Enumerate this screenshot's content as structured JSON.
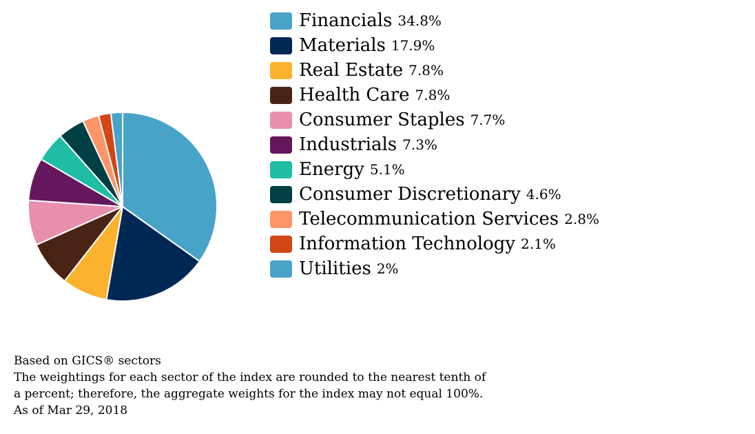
{
  "chart_data": {
    "type": "pie",
    "title": "",
    "slices": [
      {
        "label": "Financials",
        "value": 34.8,
        "display": "34.8%",
        "color": "#48a3c9"
      },
      {
        "label": "Materials",
        "value": 17.9,
        "display": "17.9%",
        "color": "#002855"
      },
      {
        "label": "Real Estate",
        "value": 7.8,
        "display": "7.8%",
        "color": "#fdb22f"
      },
      {
        "label": "Health Care",
        "value": 7.8,
        "display": "7.8%",
        "color": "#4b2314"
      },
      {
        "label": "Consumer Staples",
        "value": 7.7,
        "display": "7.7%",
        "color": "#e88fad"
      },
      {
        "label": "Industrials",
        "value": 7.3,
        "display": "7.3%",
        "color": "#64175d"
      },
      {
        "label": "Energy",
        "value": 5.1,
        "display": "5.1%",
        "color": "#1fbda3"
      },
      {
        "label": "Consumer Discretionary",
        "value": 4.6,
        "display": "4.6%",
        "color": "#003f44"
      },
      {
        "label": "Telecommunication Services",
        "value": 2.8,
        "display": "2.8%",
        "color": "#fd9568"
      },
      {
        "label": "Information Technology",
        "value": 2.1,
        "display": "2.1%",
        "color": "#d24514"
      },
      {
        "label": "Utilities",
        "value": 2.0,
        "display": "2%",
        "color": "#48a3c9"
      }
    ],
    "legend": "right"
  },
  "footnote": {
    "line1": "Based on GICS® sectors",
    "line2": "The weightings for each sector of the index are rounded to the nearest tenth of",
    "line3": "a percent; therefore, the aggregate weights for the index may not equal 100%.",
    "line4": "As of Mar 29, 2018"
  }
}
